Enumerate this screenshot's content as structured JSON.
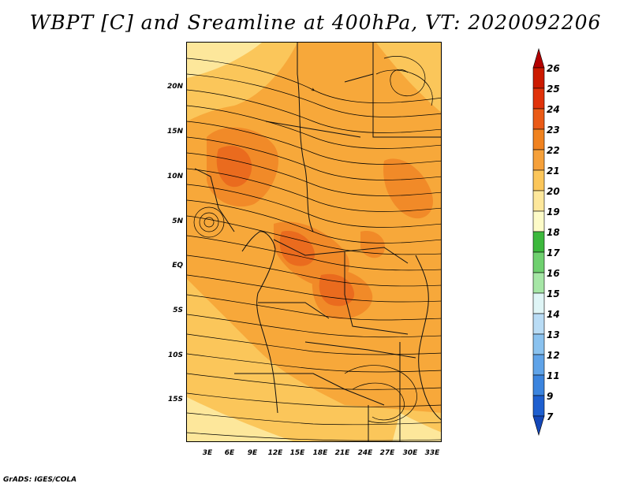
{
  "title": "WBPT [C] and Sreamline at 400hPa, VT: 2020092206",
  "footer": "GrADS: IGES/COLA",
  "map": {
    "lat_ticks": [
      "20N",
      "15N",
      "10N",
      "5N",
      "EQ",
      "5S",
      "10S",
      "15S"
    ],
    "lon_ticks": [
      "3E",
      "6E",
      "9E",
      "12E",
      "15E",
      "18E",
      "21E",
      "24E",
      "27E",
      "30E",
      "33E"
    ],
    "colors": {
      "c19": "#fde79b",
      "c20": "#fbc65a",
      "c21": "#f7a83a",
      "c22": "#f18a28",
      "c23": "#ea6b1e"
    }
  },
  "colorbar": {
    "labels": [
      "26",
      "25",
      "24",
      "23",
      "22",
      "21",
      "20",
      "19",
      "18",
      "17",
      "16",
      "15",
      "14",
      "13",
      "12",
      "11",
      "9",
      "7"
    ],
    "colors": [
      "#b30000",
      "#cc1a00",
      "#e0320a",
      "#ea5a16",
      "#f0821f",
      "#f5a03a",
      "#fbc65a",
      "#fde79b",
      "#fdfbc8",
      "#3cb83c",
      "#6fd06f",
      "#a6e6a6",
      "#dff5f6",
      "#b9dcf5",
      "#8ac2ef",
      "#5fa3e8",
      "#3b84de",
      "#1e5fcf",
      "#1447b8"
    ]
  }
}
